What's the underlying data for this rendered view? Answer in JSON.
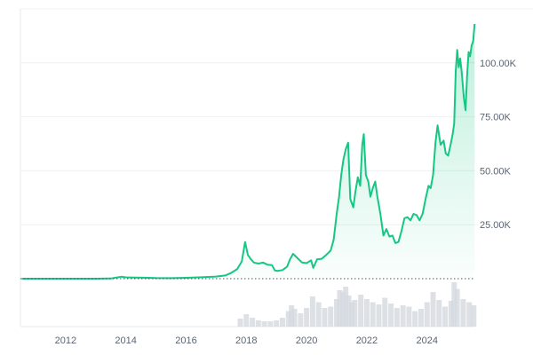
{
  "chart_data": {
    "type": "area",
    "x_axis": {
      "min": 2010.5,
      "max": 2025.6,
      "ticks": [
        2012,
        2014,
        2016,
        2018,
        2020,
        2022,
        2024
      ],
      "tick_labels": [
        "2012",
        "2014",
        "2016",
        "2018",
        "2020",
        "2022",
        "2024"
      ]
    },
    "y_axis": {
      "min": 0,
      "max": 125000,
      "ticks": [
        25000,
        50000,
        75000,
        100000
      ],
      "tick_labels": [
        "25.00K",
        "50.00K",
        "75.00K",
        "100.00K"
      ],
      "position": "right"
    },
    "grid": true,
    "baseline": {
      "value": 0,
      "style": "dotted"
    },
    "colors": {
      "line": "#16c784",
      "area_top": "#16c784",
      "volume": "#d5d9e0",
      "grid": "#eef0f3",
      "axis_text": "#5b6472"
    },
    "series": [
      {
        "type": "line",
        "x": [
          2010.55,
          2011.0,
          2011.5,
          2012.0,
          2012.5,
          2013.0,
          2013.5,
          2013.85,
          2013.92,
          2014.0,
          2014.3,
          2014.6,
          2015.0,
          2015.5,
          2016.0,
          2016.5,
          2017.0,
          2017.3,
          2017.5,
          2017.7,
          2017.85,
          2017.96,
          2018.05,
          2018.15,
          2018.25,
          2018.4,
          2018.55,
          2018.7,
          2018.85,
          2018.95,
          2019.05,
          2019.2,
          2019.35,
          2019.45,
          2019.55,
          2019.7,
          2019.85,
          2020.0,
          2020.15,
          2020.22,
          2020.35,
          2020.5,
          2020.65,
          2020.8,
          2020.9,
          2021.0,
          2021.08,
          2021.15,
          2021.22,
          2021.3,
          2021.38,
          2021.45,
          2021.55,
          2021.62,
          2021.7,
          2021.78,
          2021.85,
          2021.9,
          2021.97,
          2022.05,
          2022.12,
          2022.2,
          2022.28,
          2022.35,
          2022.45,
          2022.55,
          2022.65,
          2022.75,
          2022.85,
          2022.95,
          2023.05,
          2023.15,
          2023.25,
          2023.35,
          2023.45,
          2023.55,
          2023.65,
          2023.75,
          2023.85,
          2023.95,
          2024.05,
          2024.12,
          2024.2,
          2024.28,
          2024.35,
          2024.45,
          2024.55,
          2024.62,
          2024.7,
          2024.78,
          2024.85,
          2024.9,
          2024.95,
          2025.0,
          2025.05,
          2025.1,
          2025.15,
          2025.22,
          2025.28,
          2025.33,
          2025.38,
          2025.43,
          2025.48,
          2025.53,
          2025.58
        ],
        "y": [
          0,
          5,
          10,
          6,
          10,
          20,
          100,
          900,
          800,
          600,
          500,
          450,
          300,
          250,
          400,
          650,
          1000,
          1500,
          2700,
          4500,
          8000,
          17000,
          11000,
          9000,
          7500,
          7000,
          7500,
          6500,
          6300,
          3800,
          3600,
          4000,
          5500,
          9000,
          11500,
          9500,
          7500,
          7200,
          8500,
          5000,
          9000,
          9200,
          11000,
          13000,
          18000,
          30000,
          38000,
          48000,
          55000,
          60000,
          63000,
          37000,
          33000,
          40000,
          47000,
          43000,
          62000,
          67000,
          48000,
          45000,
          38000,
          42000,
          45000,
          38000,
          30000,
          20000,
          23000,
          19500,
          20000,
          16500,
          17000,
          22000,
          28000,
          28500,
          27000,
          30000,
          29500,
          27000,
          30000,
          37000,
          43000,
          42000,
          48000,
          63000,
          71000,
          62000,
          64000,
          58000,
          57000,
          62000,
          67000,
          72000,
          96000,
          106000,
          98000,
          102000,
          96000,
          84000,
          78000,
          94000,
          105000,
          103000,
          108000,
          110000,
          118000
        ]
      }
    ],
    "volume": {
      "x": [
        2017.8,
        2018.0,
        2018.2,
        2018.4,
        2018.6,
        2018.8,
        2019.0,
        2019.2,
        2019.4,
        2019.5,
        2019.6,
        2019.8,
        2020.0,
        2020.2,
        2020.4,
        2020.6,
        2020.8,
        2021.0,
        2021.1,
        2021.2,
        2021.3,
        2021.4,
        2021.5,
        2021.6,
        2021.8,
        2022.0,
        2022.2,
        2022.4,
        2022.6,
        2022.8,
        2023.0,
        2023.2,
        2023.4,
        2023.6,
        2023.8,
        2024.0,
        2024.2,
        2024.4,
        2024.6,
        2024.8,
        2024.9,
        2025.0,
        2025.2,
        2025.4,
        2025.55
      ],
      "y": [
        0.18,
        0.28,
        0.2,
        0.14,
        0.12,
        0.12,
        0.14,
        0.2,
        0.35,
        0.48,
        0.4,
        0.3,
        0.42,
        0.68,
        0.55,
        0.42,
        0.45,
        0.62,
        0.82,
        0.78,
        0.9,
        0.7,
        0.55,
        0.6,
        0.72,
        0.62,
        0.55,
        0.5,
        0.65,
        0.52,
        0.42,
        0.48,
        0.45,
        0.35,
        0.4,
        0.55,
        0.78,
        0.6,
        0.45,
        0.58,
        1.0,
        0.85,
        0.62,
        0.55,
        0.48
      ]
    }
  }
}
